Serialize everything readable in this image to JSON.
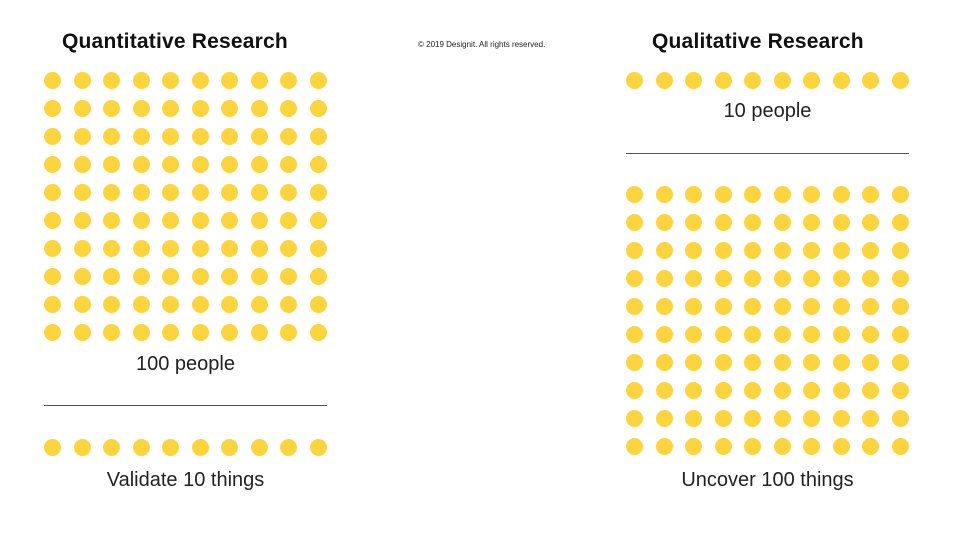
{
  "colors": {
    "dot": "#FCD440",
    "divider": "#555555"
  },
  "copyright": "© 2019 Designit. All rights reserved.",
  "quantitative": {
    "title": "Quantitative Research",
    "people_dots": 100,
    "people_label": "100 people",
    "things_dots": 10,
    "things_label": "Validate 10 things"
  },
  "qualitative": {
    "title": "Qualitative Research",
    "people_dots": 10,
    "people_label": "10 people",
    "things_dots": 100,
    "things_label": "Uncover 100 things"
  }
}
